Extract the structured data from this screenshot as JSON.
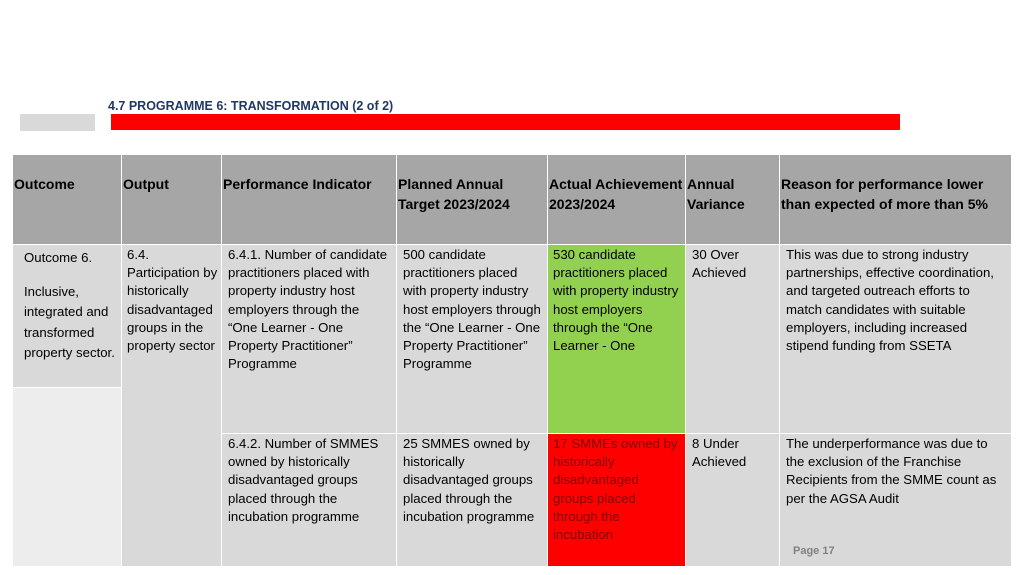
{
  "title": "4.7 PROGRAMME 6: TRANSFORMATION (2 of 2)",
  "table": {
    "headers": {
      "outcome": "Outcome",
      "output": "Output",
      "indicator": "Performance Indicator",
      "planned": "Planned Annual Target 2023/2024",
      "actual": "Actual Achievement 2023/2024",
      "variance": "Annual Variance",
      "reason": "Reason for performance lower than expected of more than 5%"
    },
    "outcome": {
      "line1": "Outcome 6.",
      "line2": "Inclusive, integrated and transformed property sector."
    },
    "output": "6.4. Participation by historically disadvantaged groups in the property sector",
    "rows": [
      {
        "indicator": "6.4.1. Number of candidate practitioners placed with property industry host employers through the “One Learner - One Property Practitioner” Programme",
        "planned": "500 candidate practitioners placed with property industry host employers through the “One Learner - One Property Practitioner” Programme",
        "actual": "530 candidate practitioners placed with property industry host employers through the “One Learner - One",
        "actual_status_color": "#92d050",
        "variance": "30 Over Achieved",
        "reason": "This was due to strong industry partnerships, effective coordination, and targeted outreach efforts to match candidates with suitable employers, including increased stipend funding from SSETA"
      },
      {
        "indicator": "6.4.2. Number of SMMES owned by historically disadvantaged groups placed through the incubation programme",
        "planned": "25 SMMES owned by historically disadvantaged groups placed through the incubation programme",
        "actual": "17 SMMEs owned by historically disadvantaged groups placed through the incubation",
        "actual_status_color": "#ff0000",
        "variance": "8 Under Achieved",
        "reason": "The underperformance was due to the exclusion of the Franchise Recipients from the SMME count as per the AGSA Audit"
      }
    ]
  },
  "page_label": "Page 17"
}
